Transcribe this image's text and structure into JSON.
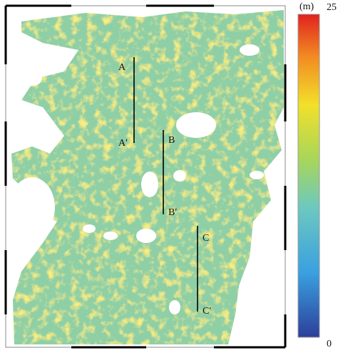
{
  "colorbar": {
    "unit": "(m)",
    "max": 25,
    "min": 0
  },
  "profiles": [
    {
      "start": "A",
      "end": "A′"
    },
    {
      "start": "B",
      "end": "B′"
    },
    {
      "start": "C",
      "end": "C′"
    }
  ]
}
